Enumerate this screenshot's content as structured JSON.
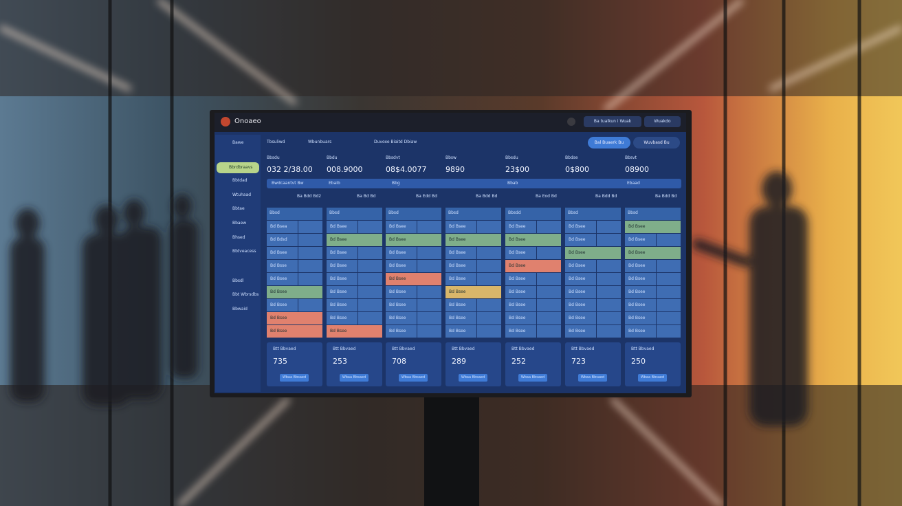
{
  "header": {
    "logo": "Onoaeo",
    "buttons": [
      "Ba tualkun i Wuak",
      "Wuakdo"
    ]
  },
  "toolbar": {
    "tabs": [
      "Tbsuliwd",
      "Wbunbuars",
      "Duvoxe Biaitd Dbiaw"
    ],
    "actions": [
      "Bal Buaerk Bu",
      "Wuvbasd Bu"
    ]
  },
  "sidebar": {
    "items": [
      "Bawe",
      "Bbrdbraavs",
      "Bbtdad",
      "Wtuhaad",
      "Bbtae",
      "Bbaew",
      "Bhsed",
      "Bbtveacess",
      "Bbsdl",
      "Bbt Wbrsdbs",
      "Bbwaid"
    ],
    "active": 1
  },
  "stats": [
    {
      "label": "Bbsdu",
      "value": "032 2/38.00"
    },
    {
      "label": "Bbdu",
      "value": "008.9000"
    },
    {
      "label": "Bbsdvt",
      "value": "08$4.0077"
    },
    {
      "label": "Bbsw",
      "value": "9890"
    },
    {
      "label": "Bbsdu",
      "value": "23$00"
    },
    {
      "label": "Bbdse",
      "value": "0$800"
    },
    {
      "label": "Bbsvt",
      "value": "08900"
    }
  ],
  "filter_bar": [
    "Bwdcaantvt Bw",
    "Ebaib",
    "Bbg",
    "Bbab",
    "Ebaad"
  ],
  "subheads": [
    "Ba Bdd Bd2",
    "Ba Bd Bd",
    "Ba Edd Bd",
    "Ba Bdd Bd",
    "Ba Eod Bd",
    "Ba Bdd Bd",
    "Ba Bdd Bd"
  ],
  "columns": [
    {
      "title": "Bbsd",
      "rows": [
        "Bd Bsea",
        "Bd Bdsd",
        "Bd Bsee",
        "Bd Bsse",
        "Bd Bsee",
        "Bd Bsee",
        "Bd Bsee",
        "Bd Bsee",
        "Bd Bsee"
      ],
      "status": [
        null,
        null,
        null,
        null,
        null,
        "green",
        null,
        "red",
        "red"
      ],
      "card": {
        "label": "Btt Bbvaed",
        "value": "735",
        "button": "Wbaa Bbsaed"
      }
    },
    {
      "title": "Bbsd",
      "rows": [
        "Bd Bsee",
        "Bd Bsee",
        "Bd Bsee",
        "Bd Bsee",
        "Bd Bsee",
        "Bd Bsee",
        "Bd Bsee",
        "Bd Bsee",
        "Bd Bsee"
      ],
      "status": [
        null,
        "green",
        null,
        null,
        null,
        null,
        null,
        null,
        "red"
      ],
      "card": {
        "label": "Btt Bbvaed",
        "value": "253",
        "button": "Wbaa Bbsaed"
      }
    },
    {
      "title": "Bbsd",
      "rows": [
        "Bd Bsee",
        "Bd Bsee",
        "Bd Bsee",
        "Bd Bsee",
        "Bd Bsee",
        "Bd Bsee",
        "Bd Bsee",
        "Bd Bsee",
        "Bd Bsee"
      ],
      "status": [
        null,
        "green",
        null,
        null,
        "red",
        null,
        null,
        null,
        null
      ],
      "card": {
        "label": "Btt Bbvaed",
        "value": "708",
        "button": "Wbaa Bbsaed"
      }
    },
    {
      "title": "Bbsd",
      "rows": [
        "Bd Bsee",
        "Bd Bsee",
        "Bd Bsee",
        "Bd Bsee",
        "Bd Bsee",
        "Bd Bsee",
        "Bd Bsee",
        "Bd Bsee",
        "Bd Bsee"
      ],
      "status": [
        null,
        "green",
        null,
        null,
        null,
        "yellow",
        null,
        null,
        null
      ],
      "card": {
        "label": "Btt Bbvaed",
        "value": "289",
        "button": "Wbaa Bbsaed"
      }
    },
    {
      "title": "Bbsdd",
      "rows": [
        "Bd Bsee",
        "Bd Bsee",
        "Bd Bsee",
        "Bd Bsee",
        "Bd Bsee",
        "Bd Bsee",
        "Bd Bsee",
        "Bd Bsee",
        "Bd Bsee"
      ],
      "status": [
        null,
        "green",
        null,
        "red",
        null,
        null,
        null,
        null,
        null
      ],
      "card": {
        "label": "Btt Bbvaed",
        "value": "252",
        "button": "Wbaa Bbsaed"
      }
    },
    {
      "title": "Bbsd",
      "rows": [
        "Bd Bsee",
        "Bd Bsee",
        "Bd Bsee",
        "Bd Bsee",
        "Bd Bsee",
        "Bd Bsee",
        "Bd Bsee",
        "Bd Bsee",
        "Bd Bsee"
      ],
      "status": [
        null,
        null,
        "green",
        null,
        null,
        null,
        null,
        null,
        null
      ],
      "card": {
        "label": "Btt Bbvaed",
        "value": "723",
        "button": "Wbaa Bbsaed"
      }
    },
    {
      "title": "Bbsd",
      "rows": [
        "Bd Bsee",
        "Bd Bsee",
        "Bd Bsee",
        "Bd Bsee",
        "Bd Bsee",
        "Bd Bsee",
        "Bd Bsee",
        "Bd Bsee",
        "Bd Bsee"
      ],
      "status": [
        "green",
        null,
        "green",
        null,
        null,
        null,
        null,
        null,
        null
      ],
      "card": {
        "label": "Btt Bbvaed",
        "value": "250",
        "button": "Wbaa Bbsaed"
      }
    }
  ]
}
